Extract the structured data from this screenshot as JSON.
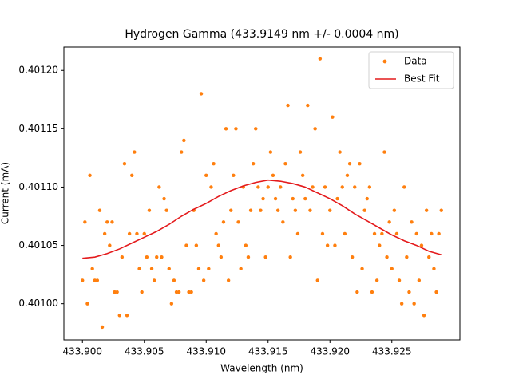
{
  "chart_data": {
    "type": "scatter",
    "title": "Hydrogen Gamma (433.9149 nm +/- 0.0004 nm)",
    "xlabel": "Wavelength (nm)",
    "ylabel": "Current (mA)",
    "xlim": [
      433.8985,
      433.9305
    ],
    "ylim": [
      0.400969,
      0.40122
    ],
    "xticks": [
      {
        "value": 433.9,
        "label": "433.900"
      },
      {
        "value": 433.905,
        "label": "433.905"
      },
      {
        "value": 433.91,
        "label": "433.910"
      },
      {
        "value": 433.915,
        "label": "433.915"
      },
      {
        "value": 433.92,
        "label": "433.920"
      },
      {
        "value": 433.925,
        "label": "433.925"
      }
    ],
    "yticks": [
      {
        "value": 0.401,
        "label": "0.40100"
      },
      {
        "value": 0.40105,
        "label": "0.40105"
      },
      {
        "value": 0.4011,
        "label": "0.40110"
      },
      {
        "value": 0.40115,
        "label": "0.40115"
      },
      {
        "value": 0.4012,
        "label": "0.40120"
      }
    ],
    "legend": "upper right",
    "series": [
      {
        "name": "Data",
        "kind": "scatter",
        "color": "#ff7f0e",
        "x": [
          433.9,
          433.9002,
          433.9004,
          433.9006,
          433.9008,
          433.901,
          433.9012,
          433.9014,
          433.9016,
          433.9018,
          433.902,
          433.9022,
          433.9024,
          433.9026,
          433.9028,
          433.903,
          433.9032,
          433.9034,
          433.9036,
          433.9038,
          433.904,
          433.9042,
          433.9044,
          433.9046,
          433.9048,
          433.905,
          433.9052,
          433.9054,
          433.9056,
          433.9058,
          433.906,
          433.9062,
          433.9064,
          433.9066,
          433.9068,
          433.907,
          433.9072,
          433.9074,
          433.9076,
          433.9078,
          433.908,
          433.9082,
          433.9084,
          433.9086,
          433.9088,
          433.909,
          433.9092,
          433.9094,
          433.9096,
          433.9098,
          433.91,
          433.9102,
          433.9104,
          433.9106,
          433.9108,
          433.911,
          433.9112,
          433.9114,
          433.9116,
          433.9118,
          433.912,
          433.9122,
          433.9124,
          433.9126,
          433.9128,
          433.913,
          433.9132,
          433.9134,
          433.9136,
          433.9138,
          433.914,
          433.9142,
          433.9144,
          433.9146,
          433.9148,
          433.915,
          433.9152,
          433.9154,
          433.9156,
          433.9158,
          433.916,
          433.9162,
          433.9164,
          433.9166,
          433.9168,
          433.917,
          433.9172,
          433.9174,
          433.9176,
          433.9178,
          433.918,
          433.9182,
          433.9184,
          433.9186,
          433.9188,
          433.919,
          433.9192,
          433.9194,
          433.9196,
          433.9198,
          433.92,
          433.9202,
          433.9204,
          433.9206,
          433.9208,
          433.921,
          433.9212,
          433.9214,
          433.9216,
          433.9218,
          433.922,
          433.9222,
          433.9224,
          433.9226,
          433.9228,
          433.923,
          433.9232,
          433.9234,
          433.9236,
          433.9238,
          433.924,
          433.9242,
          433.9244,
          433.9246,
          433.9248,
          433.925,
          433.9252,
          433.9254,
          433.9256,
          433.9258,
          433.926,
          433.9262,
          433.9264,
          433.9266,
          433.9268,
          433.927,
          433.9272,
          433.9274,
          433.9276,
          433.9278,
          433.928,
          433.9282,
          433.9284,
          433.9286,
          433.9288,
          433.929
        ],
        "values": [
          0.40102,
          0.40107,
          0.401,
          0.40111,
          0.40103,
          0.40102,
          0.40102,
          0.40108,
          0.40098,
          0.40106,
          0.40107,
          0.40105,
          0.40107,
          0.40101,
          0.40101,
          0.40099,
          0.40104,
          0.40112,
          0.40099,
          0.40106,
          0.40111,
          0.40113,
          0.40106,
          0.40103,
          0.40101,
          0.40106,
          0.40104,
          0.40108,
          0.40103,
          0.40102,
          0.40104,
          0.4011,
          0.40104,
          0.40109,
          0.40108,
          0.40103,
          0.401,
          0.40102,
          0.40101,
          0.40101,
          0.40113,
          0.40114,
          0.40105,
          0.40101,
          0.40101,
          0.40108,
          0.40105,
          0.40103,
          0.40118,
          0.40102,
          0.40111,
          0.40103,
          0.4011,
          0.40112,
          0.40106,
          0.40105,
          0.40104,
          0.40107,
          0.40115,
          0.40102,
          0.40108,
          0.40111,
          0.40115,
          0.40107,
          0.40103,
          0.4011,
          0.40105,
          0.40104,
          0.40108,
          0.40112,
          0.40115,
          0.4011,
          0.40108,
          0.40109,
          0.40104,
          0.4011,
          0.40113,
          0.40111,
          0.40109,
          0.40108,
          0.4011,
          0.40107,
          0.40112,
          0.40117,
          0.40104,
          0.40109,
          0.40108,
          0.40106,
          0.40113,
          0.40111,
          0.40109,
          0.40117,
          0.40108,
          0.4011,
          0.40115,
          0.40102,
          0.40121,
          0.40106,
          0.4011,
          0.40105,
          0.40108,
          0.40116,
          0.40105,
          0.40109,
          0.40113,
          0.4011,
          0.40106,
          0.40111,
          0.40112,
          0.40104,
          0.4011,
          0.40101,
          0.40112,
          0.40103,
          0.40108,
          0.40109,
          0.4011,
          0.40101,
          0.40106,
          0.40102,
          0.40105,
          0.40106,
          0.40113,
          0.40104,
          0.40107,
          0.40103,
          0.40108,
          0.40106,
          0.40102,
          0.401,
          0.4011,
          0.40104,
          0.40101,
          0.40107,
          0.401,
          0.40106,
          0.40102,
          0.40105,
          0.40099,
          0.40108,
          0.40104,
          0.40106,
          0.40103,
          0.40101,
          0.40106,
          0.40108
        ]
      },
      {
        "name": "Best Fit",
        "kind": "line",
        "color": "#e41a1c",
        "x": [
          433.9,
          433.901,
          433.902,
          433.903,
          433.904,
          433.905,
          433.906,
          433.907,
          433.908,
          433.909,
          433.91,
          433.911,
          433.912,
          433.913,
          433.914,
          433.915,
          433.916,
          433.917,
          433.918,
          433.919,
          433.92,
          433.921,
          433.922,
          433.923,
          433.924,
          433.925,
          433.926,
          433.927,
          433.928,
          433.929
        ],
        "values": [
          0.401039,
          0.40104,
          0.401043,
          0.401047,
          0.401052,
          0.401057,
          0.401062,
          0.401068,
          0.401075,
          0.401081,
          0.401086,
          0.401092,
          0.401097,
          0.401101,
          0.401104,
          0.401106,
          0.401105,
          0.401103,
          0.4011,
          0.401095,
          0.40109,
          0.401084,
          0.401077,
          0.401071,
          0.401065,
          0.401059,
          0.401054,
          0.40105,
          0.401045,
          0.401042
        ]
      }
    ]
  }
}
